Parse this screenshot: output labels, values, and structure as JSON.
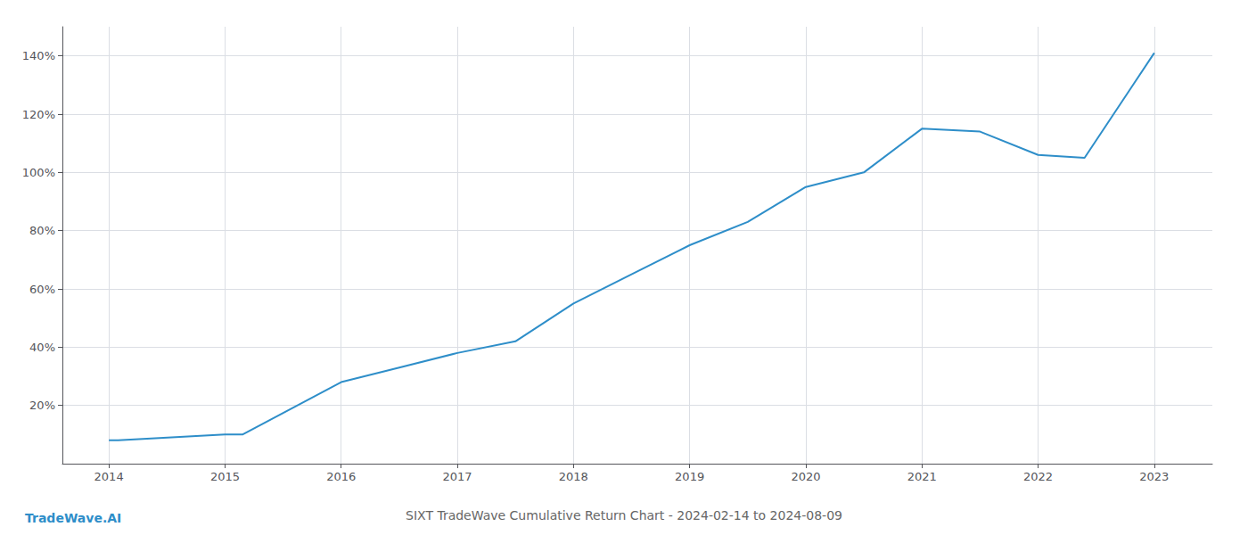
{
  "chart_data": {
    "type": "line",
    "title": "SIXT TradeWave Cumulative Return Chart - 2024-02-14 to 2024-08-09",
    "annotations": [
      "TradeWave.AI"
    ],
    "color": "#2e8ec9",
    "x": [
      2014.0,
      2014.08,
      2015.0,
      2015.15,
      2016.0,
      2016.5,
      2017.0,
      2017.5,
      2018.0,
      2018.5,
      2019.0,
      2019.5,
      2020.0,
      2020.5,
      2021.0,
      2021.5,
      2022.0,
      2022.4,
      2023.0
    ],
    "values": [
      8,
      8,
      10,
      10,
      28,
      33,
      38,
      42,
      55,
      65,
      75,
      83,
      95,
      100,
      115,
      114,
      106,
      105,
      141
    ],
    "xlim": [
      2013.6,
      2023.5
    ],
    "ylim": [
      0,
      150
    ],
    "xticks": [
      2014,
      2015,
      2016,
      2017,
      2018,
      2019,
      2020,
      2021,
      2022,
      2023
    ],
    "yticks": [
      {
        "value": 20,
        "label": "20%"
      },
      {
        "value": 40,
        "label": "40%"
      },
      {
        "value": 60,
        "label": "60%"
      },
      {
        "value": 80,
        "label": "80%"
      },
      {
        "value": 100,
        "label": "100%"
      },
      {
        "value": 120,
        "label": "120%"
      },
      {
        "value": 140,
        "label": "140%"
      }
    ],
    "grid": true
  }
}
